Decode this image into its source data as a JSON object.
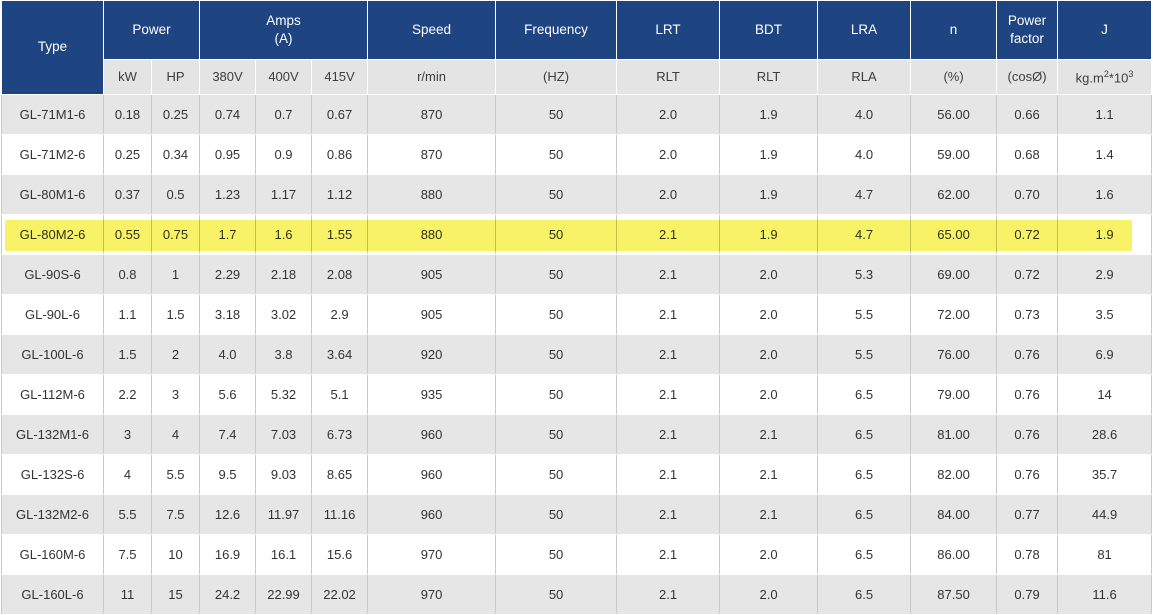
{
  "colors": {
    "header_blue": "#1e4482",
    "header_text": "#ffffff",
    "subheader_gray": "#e4e4e4",
    "row_alt_gray": "#e6e6e6",
    "row_white": "#ffffff",
    "body_text": "#333333",
    "grid_line": "#c9c9c9",
    "highlight_yellow": "#f8f366"
  },
  "table": {
    "header": {
      "type_label": "Type",
      "power_label": "Power",
      "amps_line1": "Amps",
      "amps_line2": "(A)",
      "speed_label": "Speed",
      "frequency_label": "Frequency",
      "lrt_label": "LRT",
      "bdt_label": "BDT",
      "lra_label": "LRA",
      "n_label": "n",
      "pf_line1": "Power",
      "pf_line2": "factor",
      "j_label": "J",
      "subs": {
        "kw": "kW",
        "hp": "HP",
        "v380": "380V",
        "v400": "400V",
        "v415": "415V",
        "speed": "r/min",
        "frequency": "(HZ)",
        "lrt": "RLT",
        "bdt": "RLT",
        "lra": "RLA",
        "n": "(%)",
        "pf": "(cosØ)",
        "j_base1": "kg.m",
        "j_sup1": "2",
        "j_base2": "*10",
        "j_sup2": "3"
      }
    },
    "column_keys": [
      "kw",
      "hp",
      "380v",
      "400v",
      "415v",
      "speed",
      "frequency",
      "lrt",
      "bdt",
      "lra",
      "n",
      "power-factor",
      "j"
    ],
    "rows": [
      {
        "type": "GL-71M1-6",
        "highlighted": false,
        "values": [
          "0.18",
          "0.25",
          "0.74",
          "0.7",
          "0.67",
          "870",
          "50",
          "2.0",
          "1.9",
          "4.0",
          "56.00",
          "0.66",
          "1.1"
        ]
      },
      {
        "type": "GL-71M2-6",
        "highlighted": false,
        "values": [
          "0.25",
          "0.34",
          "0.95",
          "0.9",
          "0.86",
          "870",
          "50",
          "2.0",
          "1.9",
          "4.0",
          "59.00",
          "0.68",
          "1.4"
        ]
      },
      {
        "type": "GL-80M1-6",
        "highlighted": false,
        "values": [
          "0.37",
          "0.5",
          "1.23",
          "1.17",
          "1.12",
          "880",
          "50",
          "2.0",
          "1.9",
          "4.7",
          "62.00",
          "0.70",
          "1.6"
        ]
      },
      {
        "type": "GL-80M2-6",
        "highlighted": true,
        "values": [
          "0.55",
          "0.75",
          "1.7",
          "1.6",
          "1.55",
          "880",
          "50",
          "2.1",
          "1.9",
          "4.7",
          "65.00",
          "0.72",
          "1.9"
        ]
      },
      {
        "type": "GL-90S-6",
        "highlighted": false,
        "values": [
          "0.8",
          "1",
          "2.29",
          "2.18",
          "2.08",
          "905",
          "50",
          "2.1",
          "2.0",
          "5.3",
          "69.00",
          "0.72",
          "2.9"
        ]
      },
      {
        "type": "GL-90L-6",
        "highlighted": false,
        "values": [
          "1.1",
          "1.5",
          "3.18",
          "3.02",
          "2.9",
          "905",
          "50",
          "2.1",
          "2.0",
          "5.5",
          "72.00",
          "0.73",
          "3.5"
        ]
      },
      {
        "type": "GL-100L-6",
        "highlighted": false,
        "values": [
          "1.5",
          "2",
          "4.0",
          "3.8",
          "3.64",
          "920",
          "50",
          "2.1",
          "2.0",
          "5.5",
          "76.00",
          "0.76",
          "6.9"
        ]
      },
      {
        "type": "GL-112M-6",
        "highlighted": false,
        "values": [
          "2.2",
          "3",
          "5.6",
          "5.32",
          "5.1",
          "935",
          "50",
          "2.1",
          "2.0",
          "6.5",
          "79.00",
          "0.76",
          "14"
        ]
      },
      {
        "type": "GL-132M1-6",
        "highlighted": false,
        "values": [
          "3",
          "4",
          "7.4",
          "7.03",
          "6.73",
          "960",
          "50",
          "2.1",
          "2.1",
          "6.5",
          "81.00",
          "0.76",
          "28.6"
        ]
      },
      {
        "type": "GL-132S-6",
        "highlighted": false,
        "values": [
          "4",
          "5.5",
          "9.5",
          "9.03",
          "8.65",
          "960",
          "50",
          "2.1",
          "2.1",
          "6.5",
          "82.00",
          "0.76",
          "35.7"
        ]
      },
      {
        "type": "GL-132M2-6",
        "highlighted": false,
        "values": [
          "5.5",
          "7.5",
          "12.6",
          "11.97",
          "11.16",
          "960",
          "50",
          "2.1",
          "2.1",
          "6.5",
          "84.00",
          "0.77",
          "44.9"
        ]
      },
      {
        "type": "GL-160M-6",
        "highlighted": false,
        "values": [
          "7.5",
          "10",
          "16.9",
          "16.1",
          "15.6",
          "970",
          "50",
          "2.1",
          "2.0",
          "6.5",
          "86.00",
          "0.78",
          "81"
        ]
      },
      {
        "type": "GL-160L-6",
        "highlighted": false,
        "values": [
          "11",
          "15",
          "24.2",
          "22.99",
          "22.02",
          "970",
          "50",
          "2.1",
          "2.0",
          "6.5",
          "87.50",
          "0.79",
          "11.6"
        ]
      }
    ]
  }
}
